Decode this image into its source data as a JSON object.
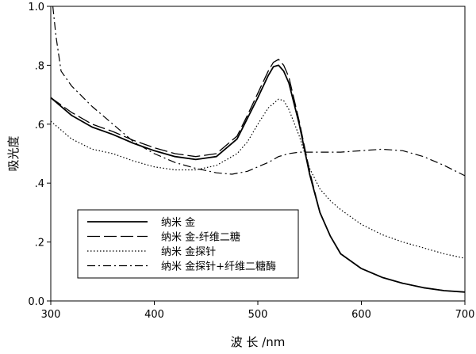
{
  "chart_data": {
    "type": "line",
    "xlabel": "波 长 /nm",
    "ylabel": "吸光度",
    "xlim": [
      300,
      700
    ],
    "ylim": [
      0.0,
      1.0
    ],
    "xticks": [
      300,
      400,
      500,
      600,
      700
    ],
    "yticks": [
      0.0,
      0.2,
      0.4,
      0.6,
      0.8,
      1.0
    ],
    "xtick_labels": [
      "300",
      "400",
      "500",
      "600",
      "700"
    ],
    "ytick_labels": [
      "0.0",
      ".2",
      ".4",
      ".6",
      ".8",
      "1.0"
    ],
    "grid": false,
    "legend_position": "bottom-left",
    "series": [
      {
        "name": "纳米 金",
        "line_style": "solid",
        "color": "#000000",
        "x": [
          300,
          320,
          340,
          360,
          380,
          400,
          420,
          440,
          460,
          480,
          490,
          500,
          510,
          515,
          520,
          525,
          530,
          540,
          550,
          560,
          570,
          580,
          600,
          620,
          640,
          660,
          680,
          700
        ],
        "y": [
          0.69,
          0.63,
          0.59,
          0.565,
          0.535,
          0.51,
          0.49,
          0.48,
          0.49,
          0.55,
          0.62,
          0.69,
          0.765,
          0.795,
          0.8,
          0.78,
          0.74,
          0.6,
          0.43,
          0.3,
          0.22,
          0.16,
          0.11,
          0.08,
          0.06,
          0.045,
          0.035,
          0.03
        ]
      },
      {
        "name": "纳米 金-纤维二糖",
        "line_style": "dashed",
        "color": "#000000",
        "x": [
          300,
          320,
          340,
          360,
          380,
          400,
          420,
          440,
          460,
          480,
          490,
          500,
          510,
          515,
          520,
          525,
          530,
          540,
          550,
          560,
          570,
          580,
          600,
          620,
          640,
          660,
          680,
          700
        ],
        "y": [
          0.69,
          0.64,
          0.6,
          0.575,
          0.545,
          0.52,
          0.5,
          0.49,
          0.5,
          0.56,
          0.63,
          0.705,
          0.78,
          0.81,
          0.82,
          0.8,
          0.76,
          0.61,
          0.44,
          0.3,
          0.22,
          0.16,
          0.11,
          0.08,
          0.06,
          0.045,
          0.035,
          0.03
        ]
      },
      {
        "name": "纳米 金探针",
        "line_style": "dotted",
        "color": "#000000",
        "x": [
          300,
          320,
          340,
          360,
          380,
          400,
          420,
          440,
          460,
          480,
          490,
          500,
          510,
          520,
          525,
          530,
          540,
          550,
          560,
          570,
          580,
          600,
          620,
          640,
          660,
          680,
          700
        ],
        "y": [
          0.61,
          0.55,
          0.515,
          0.5,
          0.475,
          0.455,
          0.445,
          0.445,
          0.46,
          0.5,
          0.54,
          0.6,
          0.655,
          0.685,
          0.68,
          0.65,
          0.56,
          0.45,
          0.38,
          0.34,
          0.31,
          0.26,
          0.225,
          0.2,
          0.18,
          0.16,
          0.145
        ]
      },
      {
        "name": "纳米 金探针+纤维二糖酶",
        "line_style": "dash-dot",
        "color": "#000000",
        "x": [
          302,
          305,
          310,
          320,
          340,
          360,
          380,
          400,
          420,
          440,
          460,
          475,
          490,
          500,
          510,
          520,
          530,
          540,
          550,
          560,
          580,
          600,
          620,
          640,
          660,
          680,
          700
        ],
        "y": [
          1.0,
          0.9,
          0.78,
          0.73,
          0.66,
          0.6,
          0.54,
          0.5,
          0.47,
          0.45,
          0.435,
          0.43,
          0.44,
          0.455,
          0.47,
          0.49,
          0.5,
          0.505,
          0.505,
          0.505,
          0.505,
          0.51,
          0.515,
          0.51,
          0.49,
          0.46,
          0.425
        ]
      }
    ]
  }
}
